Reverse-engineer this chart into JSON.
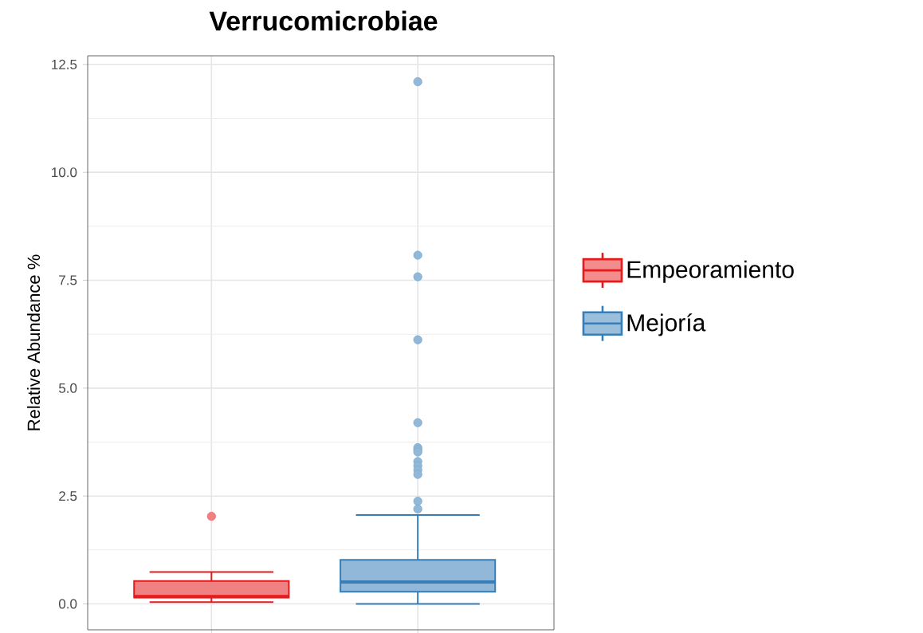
{
  "chart_data": {
    "type": "box",
    "title": "Verrucomicrobiae",
    "ylabel": "Relative Abundance %",
    "categories": [
      null,
      null
    ],
    "ylim": [
      -0.6,
      12.7
    ],
    "yticks": [
      {
        "value": 0,
        "label": "0.0"
      },
      {
        "value": 2.5,
        "label": "2.5"
      },
      {
        "value": 5,
        "label": "5.0"
      },
      {
        "value": 7.5,
        "label": "7.5"
      },
      {
        "value": 10,
        "label": "10.0"
      },
      {
        "value": 12.5,
        "label": "12.5"
      }
    ],
    "grid": true,
    "legend": "right",
    "series": [
      {
        "name": "Empeoramiento",
        "color": "#e41a1c",
        "boxes": [
          {
            "low": 0.04,
            "q1": 0.15,
            "median": 0.17,
            "q3": 0.53,
            "high": 0.74,
            "outliers": [
              2.03
            ]
          },
          null
        ]
      },
      {
        "name": "Mejoría",
        "color": "#377eb8",
        "boxes": [
          null,
          {
            "low": 0.0,
            "q1": 0.28,
            "median": 0.51,
            "q3": 1.02,
            "high": 2.06,
            "outliers": [
              12.1,
              8.08,
              7.58,
              6.12,
              4.2,
              3.62,
              3.57,
              3.52,
              3.3,
              3.2,
              3.1,
              3.0,
              2.38,
              2.2
            ]
          }
        ]
      }
    ]
  }
}
